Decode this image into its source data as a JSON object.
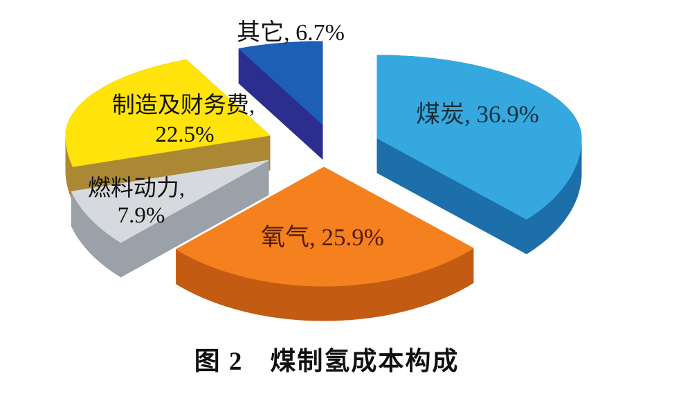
{
  "figure": {
    "caption": "图 2　煤制氢成本构成",
    "background_color": "#ffffff"
  },
  "chart_data": {
    "type": "pie",
    "style": "3d-exploded",
    "title": "图 2　煤制氢成本构成",
    "unit": "%",
    "start_angle_deg": 0,
    "direction": "clockwise",
    "legend": "none",
    "data_labels": "category-and-percent",
    "slices": [
      {
        "name": "煤炭",
        "value": 36.9,
        "label": "煤炭, 36.9%",
        "label_lines": [
          "煤炭, 36.9%"
        ],
        "color_top": "#35a9df",
        "color_side": "#1c6fa8",
        "label_color": "#16303e"
      },
      {
        "name": "氧气",
        "value": 25.9,
        "label": "氧气, 25.9%",
        "label_lines": [
          "氧气, 25.9%"
        ],
        "color_top": "#f5811e",
        "color_side": "#c35c12",
        "label_color": "#511b0a"
      },
      {
        "name": "燃料动力",
        "value": 7.9,
        "label": "燃料动力, 7.9%",
        "label_lines": [
          "燃料动力,",
          "7.9%"
        ],
        "color_top": "#d6dade",
        "color_side": "#9ba1a9",
        "label_color": "#121212"
      },
      {
        "name": "制造及财务费",
        "value": 22.5,
        "label": "制造及财务费, 22.5%",
        "label_lines": [
          "制造及财务费,",
          "22.5%"
        ],
        "color_top": "#ffe30a",
        "color_side": "#ab8934",
        "label_color": "#121212"
      },
      {
        "name": "其它",
        "value": 6.7,
        "label": "其它, 6.7%",
        "label_lines": [
          "其它, 6.7%"
        ],
        "color_top": "#1d5fb4",
        "color_side": "#2b2d8f",
        "label_color": "#121212"
      }
    ]
  }
}
